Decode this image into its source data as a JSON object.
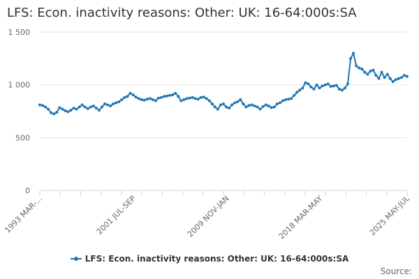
{
  "chart_data": {
    "type": "line",
    "title": "LFS: Econ. inactivity reasons: Other: UK: 16-64:000s:SA",
    "xlabel": "",
    "ylabel": "",
    "ylim": [
      0,
      1500
    ],
    "yticks": [
      0,
      500,
      1000,
      1500
    ],
    "ytick_labels": [
      "0",
      "500",
      "1 000",
      "1 500"
    ],
    "x_start": "1993 MAR-MAY",
    "x_end": "2025 MAY-JUL",
    "xtick_labels": [
      "1993 MAR-...",
      "2001 JUL-SEP",
      "2009 NOV-JAN",
      "2018 MAR-MAY",
      "2025 MAY-JUL"
    ],
    "grid": "horizontal",
    "legend_position": "bottom",
    "series": [
      {
        "name": "LFS: Econ. inactivity reasons: Other: UK: 16-64:000s:SA",
        "color": "#1f77b4",
        "values": [
          810,
          805,
          790,
          770,
          735,
          725,
          740,
          785,
          770,
          755,
          745,
          760,
          780,
          770,
          790,
          810,
          790,
          775,
          790,
          800,
          780,
          760,
          790,
          820,
          810,
          800,
          820,
          830,
          840,
          860,
          880,
          890,
          920,
          905,
          885,
          870,
          860,
          855,
          865,
          870,
          860,
          850,
          875,
          880,
          890,
          895,
          900,
          905,
          920,
          890,
          850,
          860,
          870,
          875,
          880,
          870,
          865,
          880,
          885,
          870,
          850,
          820,
          790,
          770,
          810,
          820,
          790,
          780,
          810,
          830,
          840,
          860,
          820,
          790,
          805,
          810,
          800,
          790,
          770,
          795,
          810,
          800,
          785,
          790,
          820,
          830,
          850,
          860,
          865,
          870,
          900,
          930,
          950,
          970,
          1020,
          1010,
          980,
          960,
          1000,
          970,
          990,
          1000,
          1010,
          985,
          990,
          995,
          960,
          950,
          970,
          1010,
          1250,
          1300,
          1180,
          1160,
          1150,
          1120,
          1100,
          1130,
          1140,
          1090,
          1060,
          1120,
          1070,
          1100,
          1060,
          1030,
          1050,
          1060,
          1070,
          1090,
          1080
        ]
      }
    ]
  },
  "footer": {
    "source_label": "Source:"
  }
}
